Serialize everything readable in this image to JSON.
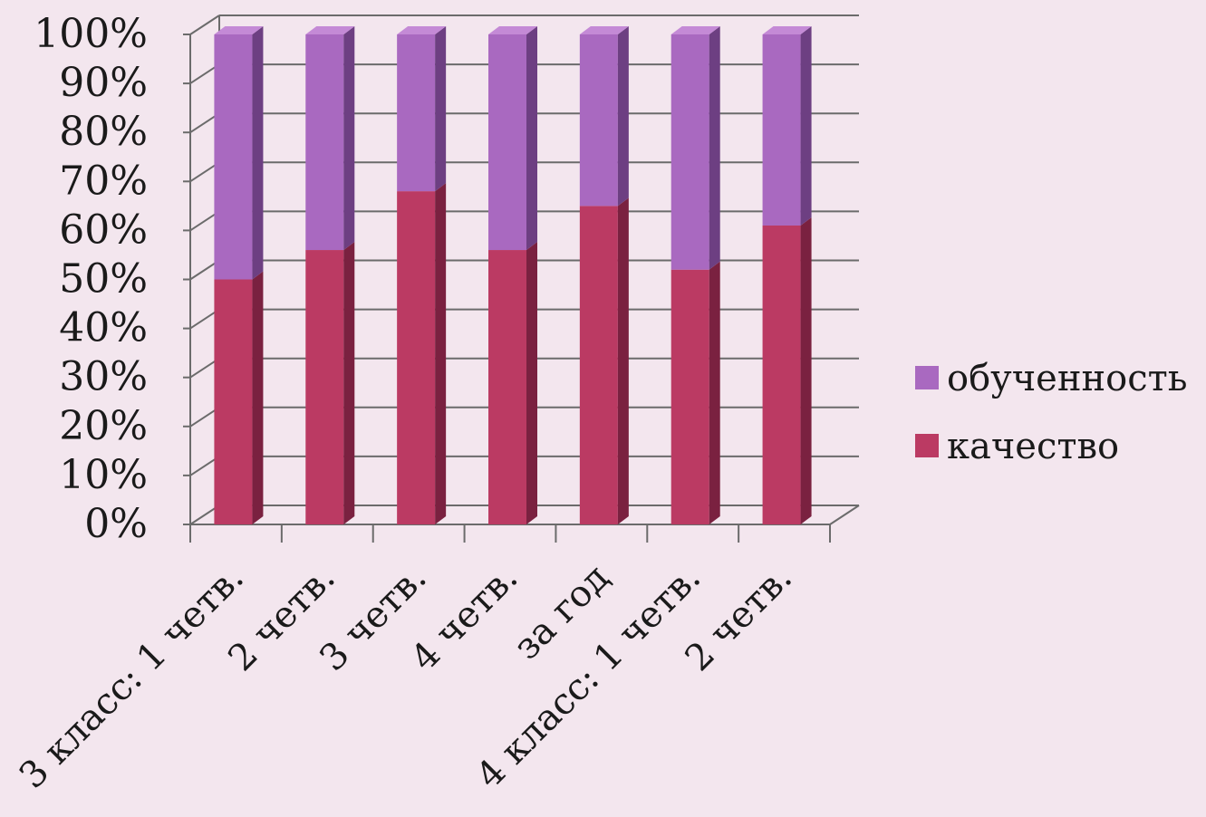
{
  "chart_data": {
    "type": "bar",
    "stacked": true,
    "percent_stacked": true,
    "three_d": true,
    "categories": [
      "3 класс: 1 четв.",
      "2 четв.",
      "3 четв.",
      "4 четв.",
      "за год",
      "4 класс: 1 четв.",
      "2 четв."
    ],
    "series": [
      {
        "name": "качество",
        "values": [
          50,
          56,
          68,
          56,
          65,
          52,
          61
        ],
        "color": "#bb3a63"
      },
      {
        "name": "обученность",
        "values": [
          50,
          44,
          32,
          44,
          35,
          48,
          39
        ],
        "color": "#a969c0"
      }
    ],
    "y_ticks": [
      "0%",
      "10%",
      "20%",
      "30%",
      "40%",
      "50%",
      "60%",
      "70%",
      "80%",
      "90%",
      "100%"
    ],
    "ylim": [
      0,
      100
    ],
    "grid": true,
    "legend": {
      "position": "right",
      "items": [
        "обученность",
        "качество"
      ]
    }
  },
  "colors": {
    "background": "#f3e6ee",
    "grid": "#6b6b6b",
    "kachestvo_side": "#7a2140",
    "obuchennost_side": "#6d3f82"
  }
}
